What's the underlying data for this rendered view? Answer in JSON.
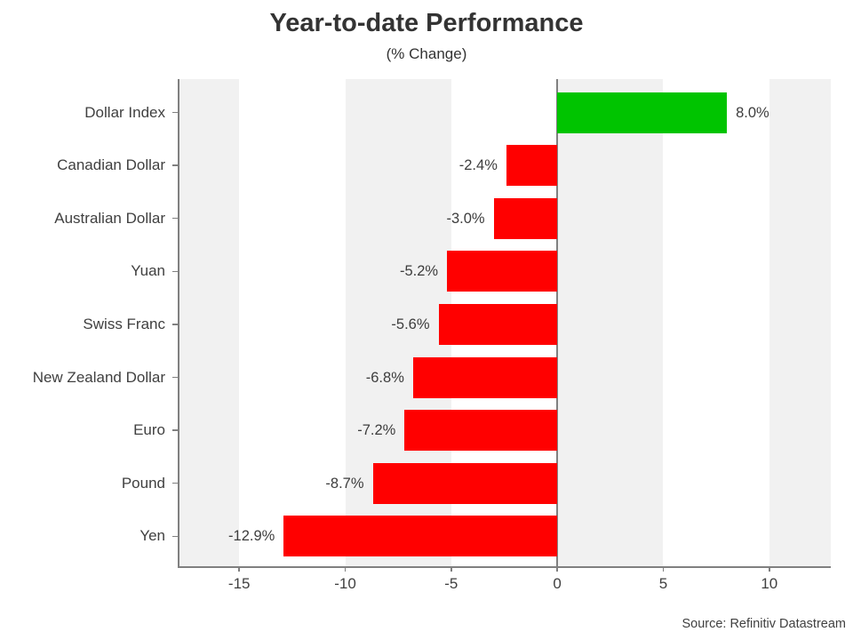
{
  "header": {
    "title": "Year-to-date Performance",
    "subtitle": "(% Change)"
  },
  "footer": {
    "source": "Source: Refinitiv Datastream"
  },
  "chart_data": {
    "type": "bar",
    "orientation": "horizontal",
    "title": "Year-to-date Performance",
    "subtitle": "(% Change)",
    "xlabel": "",
    "ylabel": "",
    "categories": [
      "Dollar Index",
      "Canadian Dollar",
      "Australian Dollar",
      "Yuan",
      "Swiss Franc",
      "New Zealand Dollar",
      "Euro",
      "Pound",
      "Yen"
    ],
    "values": [
      8.0,
      -2.4,
      -3.0,
      -5.2,
      -5.6,
      -6.8,
      -7.2,
      -8.7,
      -12.9
    ],
    "value_labels": [
      "8.0%",
      "-2.4%",
      "-3.0%",
      "-5.2%",
      "-5.6%",
      "-6.8%",
      "-7.2%",
      "-8.7%",
      "-12.9%"
    ],
    "xlim": [
      -17.9,
      12.9
    ],
    "xticks": [
      -15,
      -10,
      -5,
      0,
      5,
      10
    ],
    "xtick_labels": [
      "-15",
      "-10",
      "-5",
      "0",
      "5",
      "10"
    ],
    "grid": false,
    "legend": null,
    "colors": {
      "positive_bar": "#00c400",
      "negative_bar": "#ff0000",
      "background_band": "#f1f1f1",
      "axis": "#808080",
      "text": "#404040",
      "title_text": "#333333"
    },
    "band_intervals": [
      [
        -20,
        -15
      ],
      [
        -10,
        -5
      ],
      [
        0,
        5
      ],
      [
        10,
        15
      ]
    ]
  }
}
